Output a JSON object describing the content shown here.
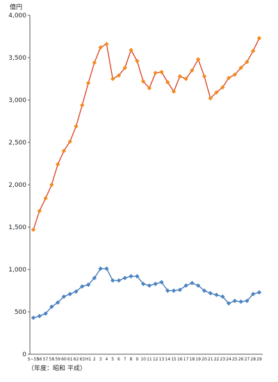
{
  "chart_data": {
    "type": "line",
    "ylabel": "億円",
    "xlabel": "（年度：昭和 平成）",
    "ylim": [
      0,
      4000
    ],
    "yticks": [
      "0",
      "500",
      "1,000",
      "1,500",
      "2,000",
      "2,500",
      "3,000",
      "3,500",
      "4,000"
    ],
    "grid": false,
    "categories": [
      "S55",
      "56",
      "57",
      "58",
      "59",
      "60",
      "61",
      "62",
      "63",
      "H1",
      "2",
      "3",
      "4",
      "5",
      "6",
      "7",
      "8",
      "9",
      "10",
      "11",
      "12",
      "13",
      "14",
      "15",
      "16",
      "17",
      "18",
      "19",
      "20",
      "21",
      "22",
      "23",
      "24",
      "25",
      "26",
      "27",
      "28",
      "29"
    ],
    "x_tick_labels": [
      "S~55",
      "56",
      "57",
      "58",
      "59",
      "60",
      "61",
      "62",
      "63",
      "H1",
      "2",
      "3",
      "4",
      "5",
      "6",
      "7",
      "8",
      "9",
      "10",
      "11",
      "12",
      "13",
      "14",
      "15",
      "16",
      "17",
      "18",
      "19",
      "20",
      "21",
      "22",
      "23",
      "24",
      "25",
      "26",
      "27",
      "28",
      "29"
    ],
    "series": [
      {
        "color": "#d93a16",
        "marker_color": "#f28a1c",
        "values": [
          1470,
          1690,
          1840,
          2000,
          2240,
          2400,
          2510,
          2690,
          2940,
          3200,
          3440,
          3620,
          3660,
          3250,
          3290,
          3380,
          3590,
          3460,
          3220,
          3140,
          3320,
          3330,
          3210,
          3100,
          3280,
          3250,
          3350,
          3480,
          3280,
          3020,
          3090,
          3150,
          3260,
          3300,
          3380,
          3450,
          3580,
          3730
        ]
      },
      {
        "color": "#3c6ead",
        "marker_color": "#4a83c4",
        "values": [
          430,
          450,
          480,
          560,
          610,
          680,
          710,
          740,
          800,
          820,
          900,
          1010,
          1010,
          870,
          870,
          900,
          920,
          920,
          830,
          810,
          830,
          850,
          750,
          750,
          760,
          810,
          840,
          810,
          750,
          720,
          700,
          680,
          600,
          630,
          620,
          630,
          710,
          730
        ]
      }
    ]
  }
}
